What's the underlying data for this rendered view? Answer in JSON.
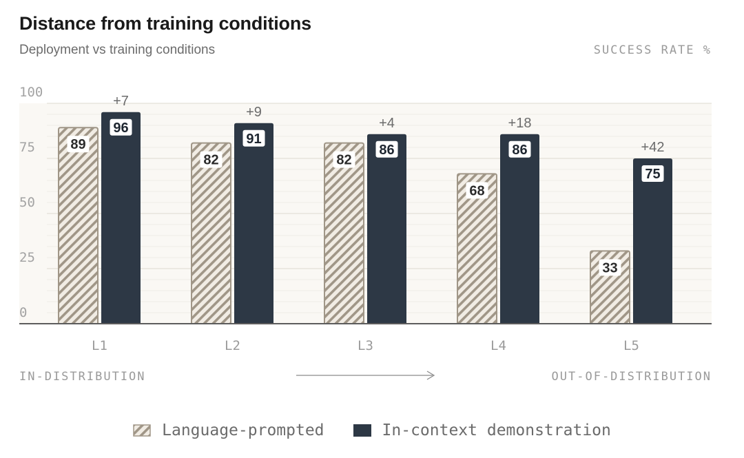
{
  "header": {
    "title": "Distance from training conditions",
    "subtitle": "Deployment vs training conditions",
    "unit_label": "SUCCESS RATE %"
  },
  "axis_annotations": {
    "left": "IN-DISTRIBUTION",
    "right": "OUT-OF-DISTRIBUTION"
  },
  "legend": {
    "language_label": "Language-prompted",
    "demo_label": "In-context demonstration"
  },
  "colors": {
    "demo_bar": "#2d3845",
    "language_bar_stripe": "#a09687",
    "language_bar_fill": "#f1ece4",
    "plot_background": "#faf8f4",
    "axis": "#5c5c5c",
    "muted_text": "#9a9a9a"
  },
  "chart_data": {
    "type": "bar",
    "categories": [
      "L1",
      "L2",
      "L3",
      "L4",
      "L5"
    ],
    "series": [
      {
        "name": "Language-prompted",
        "values": [
          89,
          82,
          82,
          68,
          33
        ]
      },
      {
        "name": "In-context demonstration",
        "values": [
          96,
          91,
          86,
          86,
          75
        ]
      }
    ],
    "difference_labels": [
      "+7",
      "+9",
      "+4",
      "+18",
      "+42"
    ],
    "ylim": [
      0,
      100
    ],
    "yticks": [
      0,
      25,
      50,
      75,
      100
    ],
    "ylabel": "SUCCESS RATE %",
    "grid": true
  }
}
